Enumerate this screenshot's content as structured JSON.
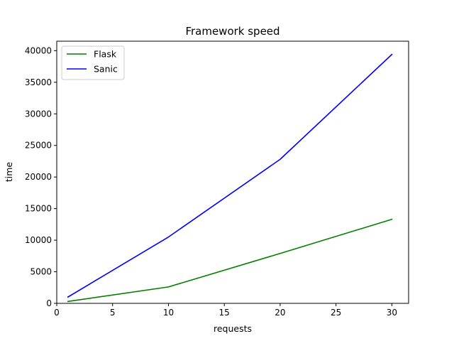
{
  "chart_data": {
    "type": "line",
    "title": "Framework speed",
    "xlabel": "requests",
    "ylabel": "time",
    "xlim": [
      0,
      31.5
    ],
    "ylim": [
      0,
      41500
    ],
    "xticks": [
      0,
      5,
      10,
      15,
      20,
      25,
      30
    ],
    "yticks": [
      0,
      5000,
      10000,
      15000,
      20000,
      25000,
      30000,
      35000,
      40000
    ],
    "grid": false,
    "legend": "upper-left",
    "series": [
      {
        "name": "Flask",
        "color": "#008000",
        "x": [
          1,
          10,
          20,
          30
        ],
        "y": [
          300,
          2600,
          7900,
          13300
        ]
      },
      {
        "name": "Sanic",
        "color": "#0000ff",
        "x": [
          1,
          10,
          20,
          30
        ],
        "y": [
          1000,
          10500,
          22800,
          39400
        ]
      }
    ]
  }
}
